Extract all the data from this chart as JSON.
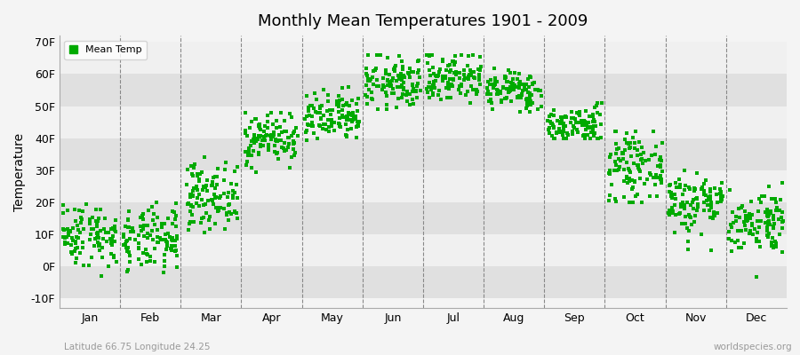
{
  "title": "Monthly Mean Temperatures 1901 - 2009",
  "ylabel": "Temperature",
  "xlabel_bottom_left": "Latitude 66.75 Longitude 24.25",
  "xlabel_bottom_right": "worldspecies.org",
  "legend_label": "Mean Temp",
  "dot_color": "#00aa00",
  "background_color": "#f4f4f4",
  "band_light": "#f0f0f0",
  "band_dark": "#e0e0e0",
  "yticks": [
    -10,
    0,
    10,
    20,
    30,
    40,
    50,
    60,
    70
  ],
  "ytick_labels": [
    "-10F",
    "0F",
    "10F",
    "20F",
    "30F",
    "40F",
    "50F",
    "60F",
    "70F"
  ],
  "ylim": [
    -13,
    72
  ],
  "months": [
    "Jan",
    "Feb",
    "Mar",
    "Apr",
    "May",
    "Jun",
    "Jul",
    "Aug",
    "Sep",
    "Oct",
    "Nov",
    "Dec"
  ],
  "n_years": 109,
  "monthly_means_F": [
    10,
    8,
    22,
    40,
    46,
    57,
    59,
    55,
    44,
    31,
    20,
    14
  ],
  "monthly_stds_F": [
    5,
    5,
    5,
    4,
    4,
    4,
    4,
    3,
    3,
    5,
    5,
    5
  ],
  "monthly_min_F": [
    -9,
    -10,
    5,
    28,
    36,
    49,
    50,
    48,
    40,
    20,
    5,
    -5
  ],
  "monthly_max_F": [
    25,
    22,
    34,
    48,
    58,
    66,
    66,
    62,
    51,
    42,
    30,
    26
  ],
  "seed": 42
}
